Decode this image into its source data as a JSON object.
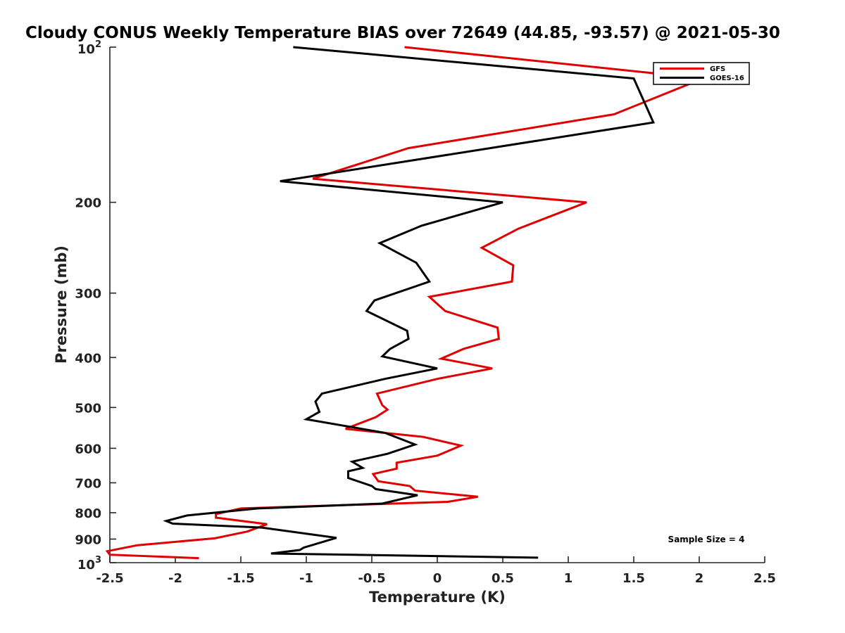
{
  "chart_data": {
    "type": "line",
    "title": "Cloudy CONUS Weekly Temperature BIAS over 72649 (44.85, -93.57) @ 2021-05-30",
    "xlabel": "Temperature (K)",
    "ylabel": "Pressure (mb)",
    "xlim": [
      -2.5,
      2.5
    ],
    "ylim": [
      100,
      1000
    ],
    "y_scale": "log",
    "y_reversed": true,
    "grid": false,
    "legend_position": "top-right",
    "x_ticks": [
      "-2.5",
      "-2",
      "-1.5",
      "-1",
      "-0.5",
      "0",
      "0.5",
      "1",
      "1.5",
      "2",
      "2.5"
    ],
    "y_ticks": [
      {
        "value": 100,
        "base": "10",
        "exp": "2"
      },
      {
        "value": 200,
        "label": "200"
      },
      {
        "value": 300,
        "label": "300"
      },
      {
        "value": 400,
        "label": "400"
      },
      {
        "value": 500,
        "label": "500"
      },
      {
        "value": 600,
        "label": "600"
      },
      {
        "value": 700,
        "label": "700"
      },
      {
        "value": 800,
        "label": "800"
      },
      {
        "value": 900,
        "label": "900"
      },
      {
        "value": 1000,
        "base": "10",
        "exp": "3"
      }
    ],
    "annotation": "Sample Size = 4",
    "series": [
      {
        "name": "GFS",
        "color": "#e00000",
        "points": [
          [
            -0.25,
            100
          ],
          [
            2.03,
            115
          ],
          [
            1.35,
            135
          ],
          [
            -0.22,
            157
          ],
          [
            -0.95,
            180
          ],
          [
            1.14,
            200
          ],
          [
            0.62,
            225
          ],
          [
            0.34,
            245
          ],
          [
            0.58,
            265
          ],
          [
            0.57,
            285
          ],
          [
            -0.06,
            305
          ],
          [
            0.06,
            325
          ],
          [
            0.46,
            350
          ],
          [
            0.47,
            368
          ],
          [
            0.2,
            385
          ],
          [
            0.03,
            402
          ],
          [
            0.42,
            420
          ],
          [
            0.0,
            440
          ],
          [
            -0.46,
            470
          ],
          [
            -0.42,
            495
          ],
          [
            -0.38,
            505
          ],
          [
            -0.47,
            522
          ],
          [
            -0.7,
            550
          ],
          [
            -0.11,
            570
          ],
          [
            0.18,
            593
          ],
          [
            0.0,
            620
          ],
          [
            -0.31,
            640
          ],
          [
            -0.31,
            657
          ],
          [
            -0.49,
            673
          ],
          [
            -0.45,
            695
          ],
          [
            -0.21,
            710
          ],
          [
            -0.17,
            725
          ],
          [
            0.31,
            745
          ],
          [
            0.08,
            762
          ],
          [
            -1.5,
            785
          ],
          [
            -1.69,
            805
          ],
          [
            -1.69,
            818
          ],
          [
            -1.3,
            842
          ],
          [
            -1.45,
            870
          ],
          [
            -1.7,
            897
          ],
          [
            -2.29,
            925
          ],
          [
            -2.52,
            950
          ],
          [
            -2.5,
            965
          ],
          [
            -1.82,
            980
          ]
        ]
      },
      {
        "name": "GOES-16",
        "color": "#000000",
        "points": [
          [
            -1.1,
            100
          ],
          [
            1.5,
            115
          ],
          [
            1.65,
            140
          ],
          [
            -1.2,
            182
          ],
          [
            0.5,
            200
          ],
          [
            -0.12,
            222
          ],
          [
            -0.44,
            240
          ],
          [
            -0.16,
            262
          ],
          [
            -0.06,
            285
          ],
          [
            -0.48,
            310
          ],
          [
            -0.54,
            325
          ],
          [
            -0.23,
            355
          ],
          [
            -0.22,
            368
          ],
          [
            -0.36,
            385
          ],
          [
            -0.42,
            398
          ],
          [
            0.0,
            420
          ],
          [
            -0.4,
            440
          ],
          [
            -0.88,
            470
          ],
          [
            -0.93,
            487
          ],
          [
            -0.9,
            510
          ],
          [
            -1.0,
            527
          ],
          [
            -0.4,
            560
          ],
          [
            -0.17,
            590
          ],
          [
            -0.38,
            615
          ],
          [
            -0.65,
            637
          ],
          [
            -0.57,
            655
          ],
          [
            -0.68,
            665
          ],
          [
            -0.68,
            685
          ],
          [
            -0.5,
            710
          ],
          [
            -0.47,
            720
          ],
          [
            -0.15,
            740
          ],
          [
            -0.42,
            768
          ],
          [
            -1.37,
            785
          ],
          [
            -1.91,
            810
          ],
          [
            -2.07,
            830
          ],
          [
            -2.02,
            840
          ],
          [
            -1.34,
            855
          ],
          [
            -0.77,
            895
          ],
          [
            -1.02,
            935
          ],
          [
            -1.05,
            945
          ],
          [
            -1.27,
            960
          ],
          [
            0.77,
            978
          ]
        ]
      }
    ]
  }
}
